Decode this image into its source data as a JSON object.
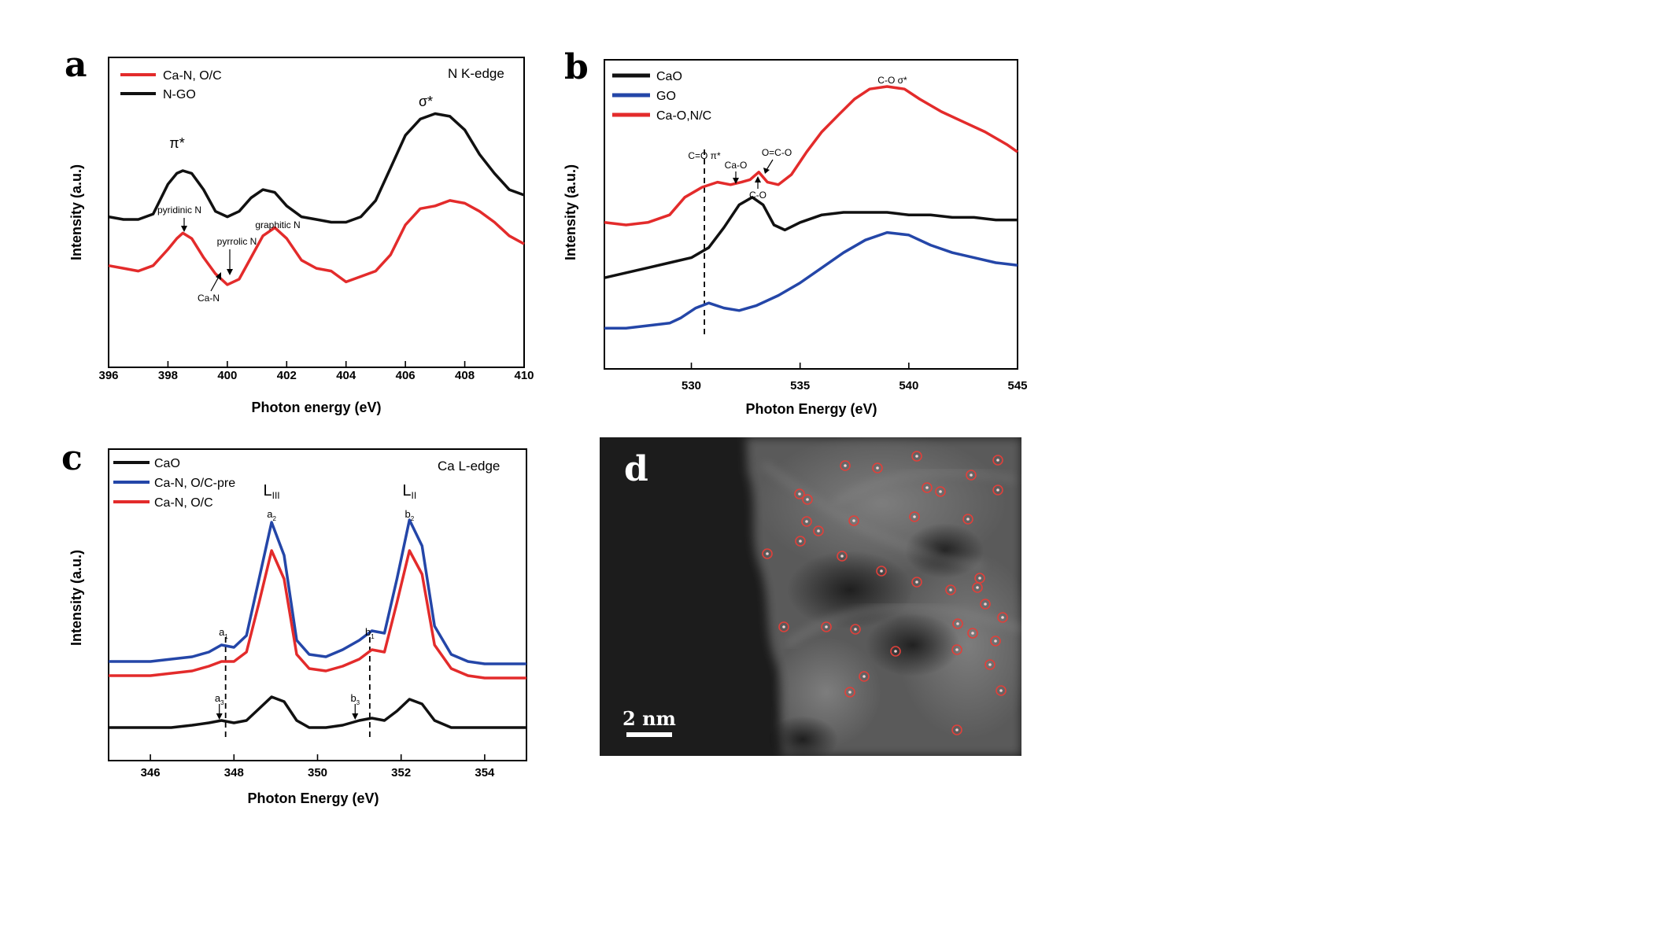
{
  "chart_data": [
    {
      "panel": "a",
      "type": "line",
      "xlabel": "Photon energy (eV)",
      "ylabel": "Intensity (a.u.)",
      "xlim": [
        396,
        410
      ],
      "xticks": [
        396,
        398,
        400,
        402,
        404,
        406,
        408,
        410
      ],
      "edge_label": "N K-edge",
      "legend_position": "top-left",
      "series": [
        {
          "name": "Ca-N, O/C",
          "color": "#e32b2b",
          "x": [
            396.0,
            396.5,
            397.0,
            397.5,
            398.0,
            398.3,
            398.5,
            398.8,
            399.2,
            399.6,
            400.0,
            400.4,
            400.8,
            401.2,
            401.6,
            402.0,
            402.5,
            403.0,
            403.5,
            404.0,
            404.5,
            405.0,
            405.5,
            406.0,
            406.5,
            407.0,
            407.5,
            408.0,
            408.5,
            409.0,
            409.5,
            410.0
          ],
          "y": [
            0.34,
            0.33,
            0.32,
            0.34,
            0.4,
            0.44,
            0.46,
            0.44,
            0.37,
            0.31,
            0.27,
            0.29,
            0.37,
            0.45,
            0.48,
            0.44,
            0.36,
            0.33,
            0.32,
            0.28,
            0.3,
            0.32,
            0.38,
            0.49,
            0.55,
            0.56,
            0.58,
            0.57,
            0.54,
            0.5,
            0.45,
            0.42
          ]
        },
        {
          "name": "N-GO",
          "color": "#111111",
          "x": [
            396.0,
            396.5,
            397.0,
            397.5,
            398.0,
            398.3,
            398.5,
            398.8,
            399.2,
            399.6,
            400.0,
            400.4,
            400.8,
            401.2,
            401.6,
            402.0,
            402.5,
            403.0,
            403.5,
            404.0,
            404.5,
            405.0,
            405.5,
            406.0,
            406.5,
            407.0,
            407.5,
            408.0,
            408.5,
            409.0,
            409.5,
            410.0
          ],
          "y": [
            0.52,
            0.51,
            0.51,
            0.53,
            0.64,
            0.68,
            0.69,
            0.68,
            0.62,
            0.54,
            0.52,
            0.54,
            0.59,
            0.62,
            0.61,
            0.56,
            0.52,
            0.51,
            0.5,
            0.5,
            0.52,
            0.58,
            0.7,
            0.82,
            0.88,
            0.9,
            0.89,
            0.84,
            0.75,
            0.68,
            0.62,
            0.6
          ]
        }
      ],
      "annotations": [
        {
          "text": "π*",
          "x": 398.5
        },
        {
          "text": "σ*",
          "x": 407.0
        },
        {
          "text": "pyridinic N",
          "x": 398.5
        },
        {
          "text": "pyrrolic N",
          "x": 400.3
        },
        {
          "text": "graphitic N",
          "x": 401.6
        },
        {
          "text": "Ca-N",
          "x": 399.6
        }
      ]
    },
    {
      "panel": "b",
      "type": "line",
      "xlabel": "Photon Energy (eV)",
      "ylabel": "Intensity (a.u.)",
      "xlim": [
        526,
        545
      ],
      "xticks": [
        530,
        535,
        540,
        545
      ],
      "legend_position": "top-left",
      "series": [
        {
          "name": "CaO",
          "color": "#111111",
          "x": [
            526,
            527,
            528,
            529,
            530,
            530.8,
            531.5,
            532.2,
            532.8,
            533.3,
            533.8,
            534.3,
            535,
            536,
            537,
            538,
            539,
            540,
            541,
            542,
            543,
            544,
            545
          ],
          "y": [
            0.24,
            0.26,
            0.28,
            0.3,
            0.32,
            0.36,
            0.44,
            0.53,
            0.56,
            0.53,
            0.45,
            0.43,
            0.46,
            0.49,
            0.5,
            0.5,
            0.5,
            0.49,
            0.49,
            0.48,
            0.48,
            0.47,
            0.47
          ]
        },
        {
          "name": "GO",
          "color": "#2446a8",
          "x": [
            526,
            527,
            528,
            529,
            529.5,
            530.2,
            530.8,
            531.5,
            532.2,
            533,
            534,
            535,
            536,
            537,
            538,
            539,
            540,
            541,
            542,
            543,
            544,
            545
          ],
          "y": [
            0.04,
            0.04,
            0.05,
            0.06,
            0.08,
            0.12,
            0.14,
            0.12,
            0.11,
            0.13,
            0.17,
            0.22,
            0.28,
            0.34,
            0.39,
            0.42,
            0.41,
            0.37,
            0.34,
            0.32,
            0.3,
            0.29
          ]
        },
        {
          "name": "Ca-O,N/C",
          "color": "#e32b2b",
          "x": [
            526,
            527,
            528,
            529,
            529.7,
            530.5,
            531.2,
            531.8,
            532.3,
            532.7,
            533.1,
            533.5,
            534,
            534.6,
            535.3,
            536,
            536.8,
            537.5,
            538.2,
            539,
            539.8,
            540.5,
            541.5,
            542.5,
            543.5,
            544.5,
            545
          ],
          "y": [
            0.46,
            0.45,
            0.46,
            0.49,
            0.56,
            0.6,
            0.62,
            0.61,
            0.62,
            0.63,
            0.66,
            0.62,
            0.61,
            0.65,
            0.74,
            0.82,
            0.89,
            0.95,
            0.99,
            1.0,
            0.99,
            0.95,
            0.9,
            0.86,
            0.82,
            0.77,
            0.74
          ]
        }
      ],
      "annotations": [
        {
          "text": "C=O π*",
          "x": 530.6
        },
        {
          "text": "Ca-O",
          "x": 532.0
        },
        {
          "text": "O=C-O",
          "x": 533.8
        },
        {
          "text": "C-O",
          "x": 533.0
        },
        {
          "text": "C-O σ*",
          "x": 539.0
        }
      ],
      "reference_line_x": 530.6
    },
    {
      "panel": "c",
      "type": "line",
      "xlabel": "Photon Energy (eV)",
      "ylabel": "Intensity (a.u.)",
      "xlim": [
        345,
        355
      ],
      "xticks": [
        346,
        348,
        350,
        352,
        354
      ],
      "edge_label": "Ca L-edge",
      "legend_position": "top-left",
      "series": [
        {
          "name": "CaO",
          "color": "#111111",
          "x": [
            345.0,
            345.5,
            346.0,
            346.5,
            347.0,
            347.4,
            347.7,
            348.0,
            348.3,
            348.6,
            348.9,
            349.2,
            349.5,
            349.8,
            350.2,
            350.6,
            351.0,
            351.3,
            351.6,
            351.9,
            352.2,
            352.5,
            352.8,
            353.2,
            353.6,
            354.0,
            354.5,
            355.0
          ],
          "y": [
            0.05,
            0.05,
            0.05,
            0.05,
            0.06,
            0.07,
            0.08,
            0.07,
            0.08,
            0.13,
            0.18,
            0.16,
            0.08,
            0.05,
            0.05,
            0.06,
            0.08,
            0.09,
            0.08,
            0.12,
            0.17,
            0.15,
            0.08,
            0.05,
            0.05,
            0.05,
            0.05,
            0.05
          ]
        },
        {
          "name": "Ca-N, O/C-pre",
          "color": "#2446a8",
          "x": [
            345.0,
            345.5,
            346.0,
            346.5,
            347.0,
            347.4,
            347.7,
            348.0,
            348.3,
            348.6,
            348.9,
            349.2,
            349.5,
            349.8,
            350.2,
            350.6,
            351.0,
            351.3,
            351.6,
            351.9,
            352.2,
            352.5,
            352.8,
            353.2,
            353.6,
            354.0,
            354.5,
            355.0
          ],
          "y": [
            0.33,
            0.33,
            0.33,
            0.34,
            0.35,
            0.37,
            0.4,
            0.39,
            0.44,
            0.68,
            0.92,
            0.78,
            0.42,
            0.36,
            0.35,
            0.38,
            0.42,
            0.46,
            0.45,
            0.68,
            0.93,
            0.82,
            0.48,
            0.36,
            0.33,
            0.32,
            0.32,
            0.32
          ]
        },
        {
          "name": "Ca-N, O/C",
          "color": "#e32b2b",
          "x": [
            345.0,
            345.5,
            346.0,
            346.5,
            347.0,
            347.4,
            347.7,
            348.0,
            348.3,
            348.6,
            348.9,
            349.2,
            349.5,
            349.8,
            350.2,
            350.6,
            351.0,
            351.3,
            351.6,
            351.9,
            352.2,
            352.5,
            352.8,
            353.2,
            353.6,
            354.0,
            354.5,
            355.0
          ],
          "y": [
            0.27,
            0.27,
            0.27,
            0.28,
            0.29,
            0.31,
            0.33,
            0.33,
            0.37,
            0.58,
            0.8,
            0.68,
            0.36,
            0.3,
            0.29,
            0.31,
            0.34,
            0.38,
            0.37,
            0.58,
            0.8,
            0.7,
            0.4,
            0.3,
            0.27,
            0.26,
            0.26,
            0.26
          ]
        }
      ],
      "annotations": [
        {
          "text": "L",
          "sub": "III",
          "x": 348.9
        },
        {
          "text": "L",
          "sub": "II",
          "x": 352.2
        },
        {
          "text": "a",
          "sub": "2",
          "x": 348.9
        },
        {
          "text": "b",
          "sub": "2",
          "x": 352.2
        },
        {
          "text": "a",
          "sub": "1",
          "x": 347.75
        },
        {
          "text": "b",
          "sub": "1",
          "x": 351.25
        },
        {
          "text": "a",
          "sub": "3",
          "x": 347.65
        },
        {
          "text": "b",
          "sub": "3",
          "x": 350.9
        }
      ],
      "reference_lines_x": [
        347.8,
        351.25
      ]
    }
  ],
  "micrograph": {
    "panel": "d",
    "scale_bar_label": "2 nm",
    "marker_color": "#e0403a"
  }
}
